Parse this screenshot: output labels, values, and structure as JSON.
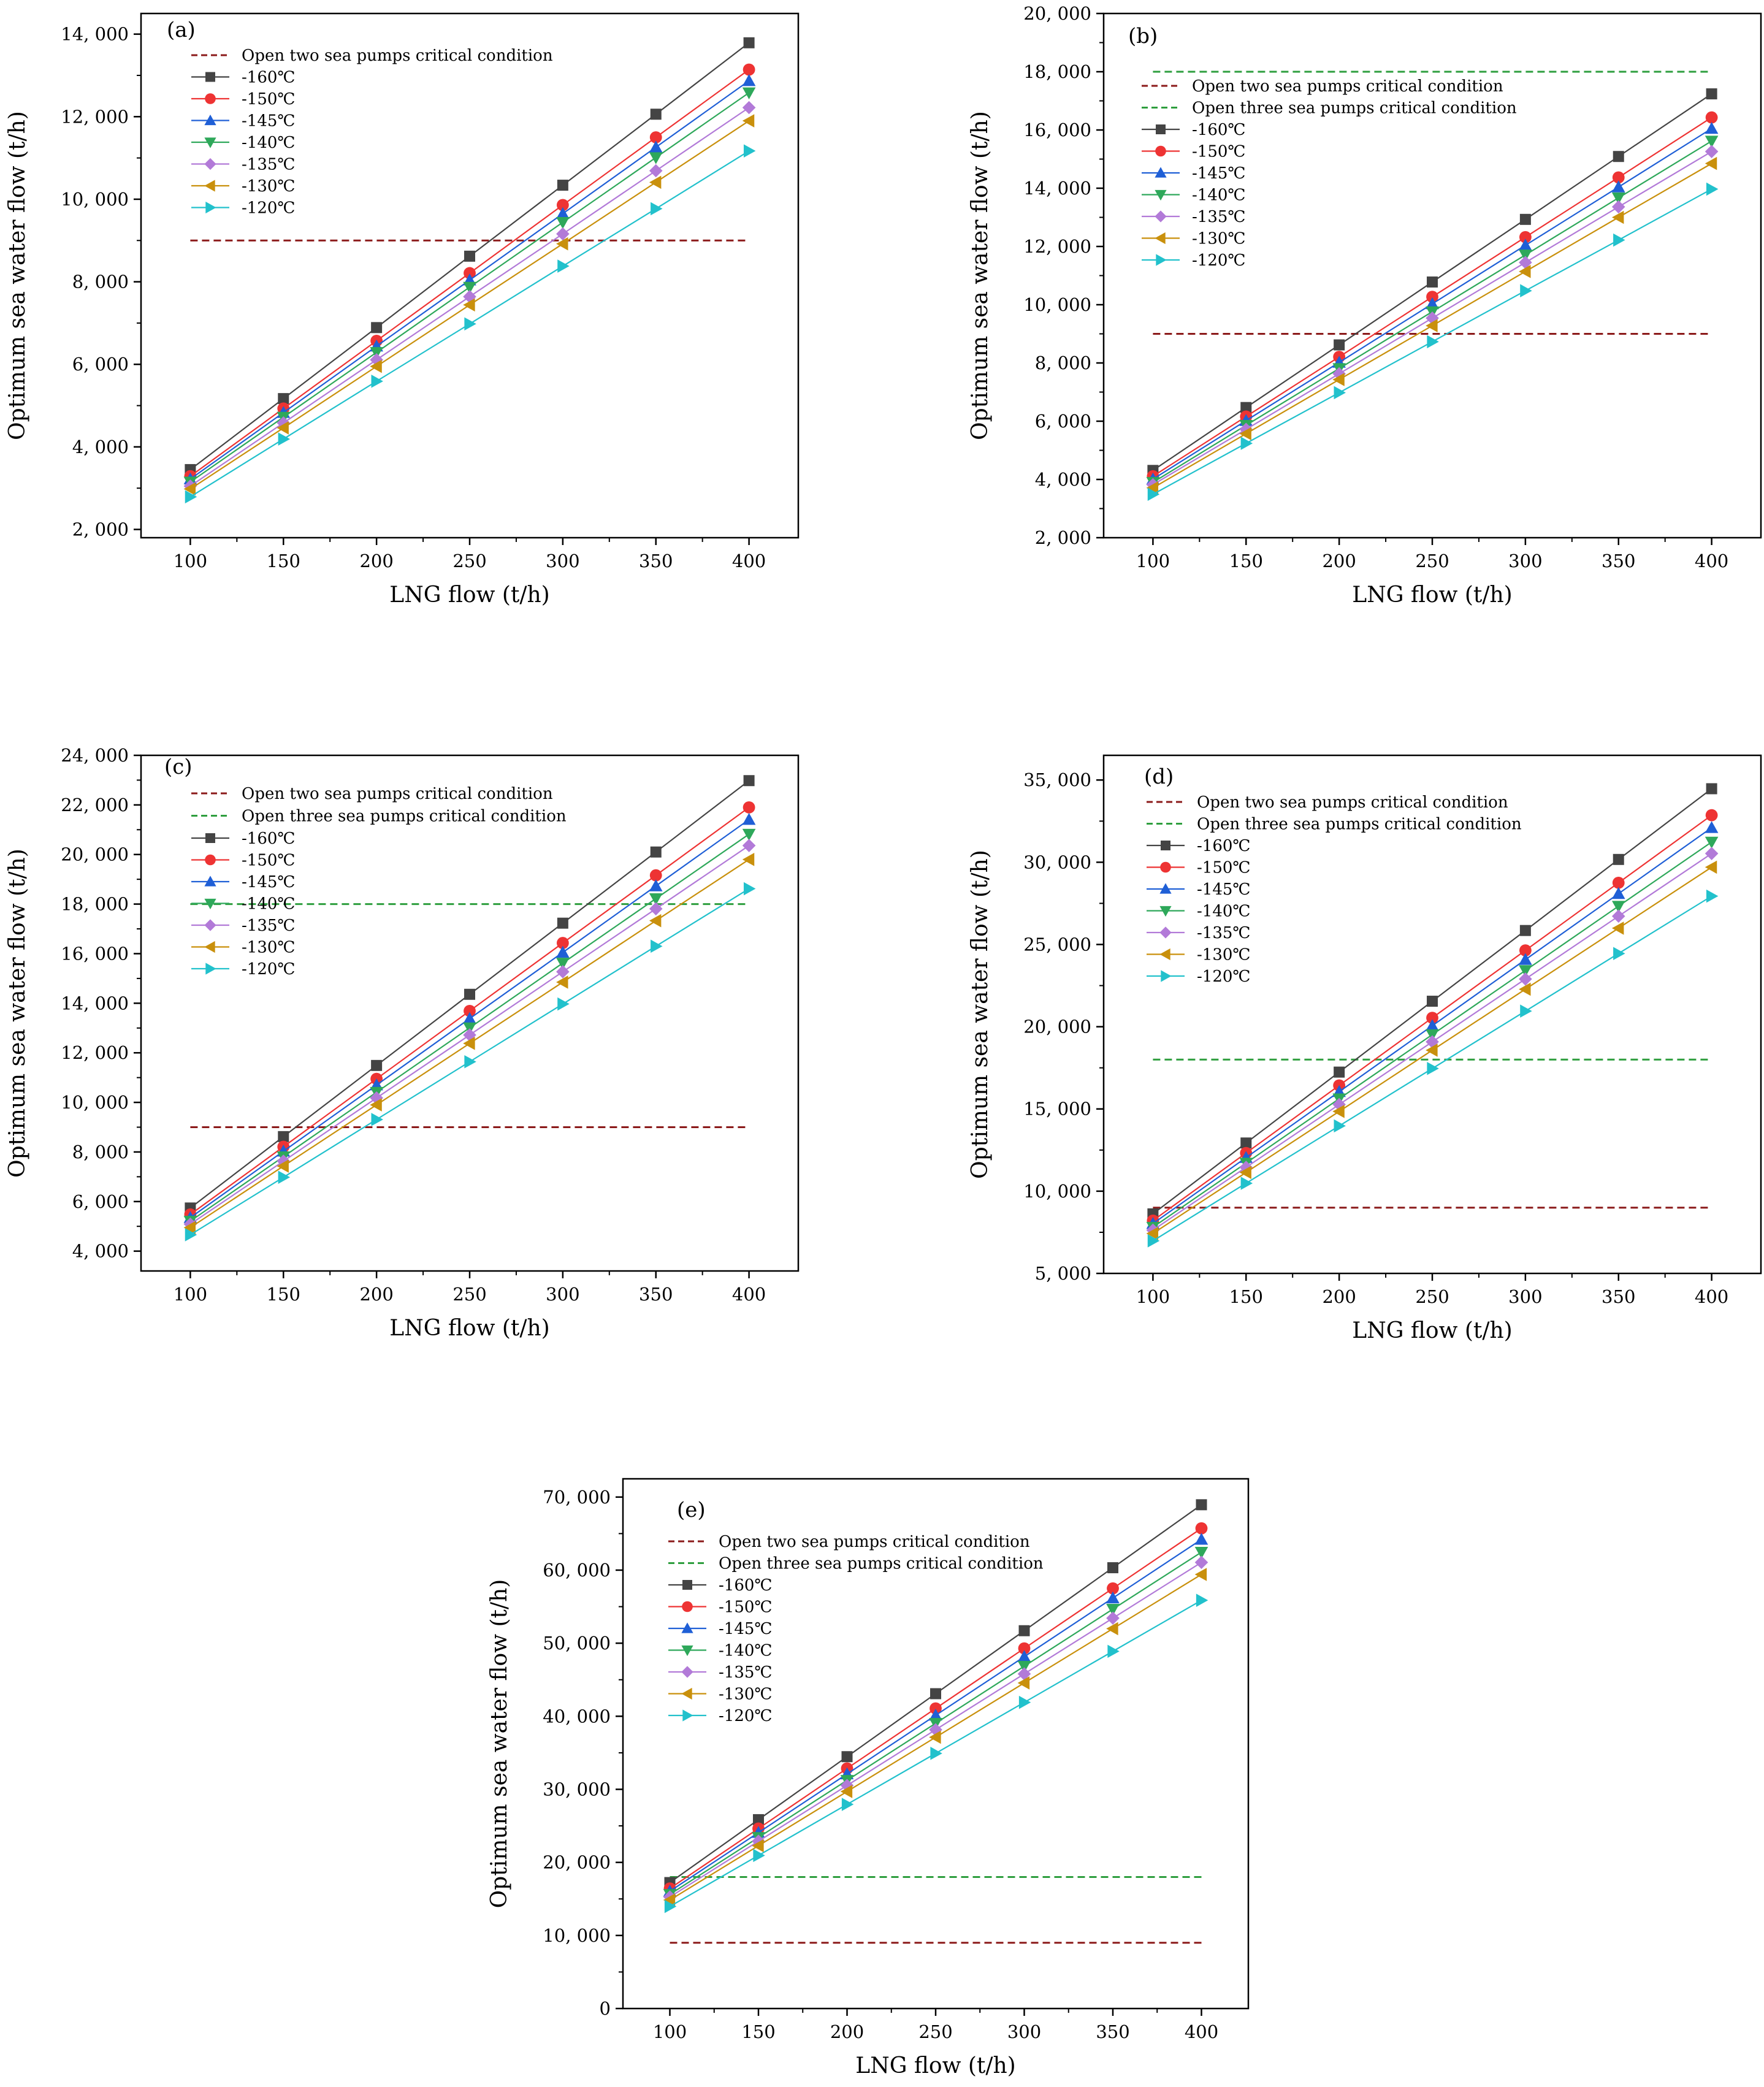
{
  "figure": {
    "x_axis_label": "LNG flow (t/h)",
    "y_axis_label": "Optimum sea water flow (t/h)",
    "series_names": [
      "-160℃",
      "-150℃",
      "-145℃",
      "-140℃",
      "-135℃",
      "-130℃",
      "-120℃"
    ],
    "series_colors": [
      "#444444",
      "#ee3333",
      "#1f5fd6",
      "#2ea85a",
      "#b27ad8",
      "#c9900c",
      "#22c1cc"
    ],
    "series_markers": [
      "square",
      "circle",
      "triangle-up",
      "triangle-down",
      "diamond",
      "triangle-left",
      "triangle-right"
    ],
    "critical_line_names": [
      "Open two sea pumps critical condition",
      "Open three sea pumps critical condition"
    ],
    "critical_line_colors": [
      "#8b1a1a",
      "#2e9e3e"
    ]
  },
  "chart_data": [
    {
      "panel": "(a)",
      "type": "line",
      "x": [
        100,
        150,
        200,
        250,
        300,
        350,
        400
      ],
      "xticks": [
        "100",
        "150",
        "200",
        "250",
        "300",
        "350",
        "400"
      ],
      "yticks": [
        "2, 000",
        "4, 000",
        "6, 000",
        "8, 000",
        "10, 000",
        "12, 000",
        "14, 000"
      ],
      "ytick_values": [
        2000,
        4000,
        6000,
        8000,
        10000,
        12000,
        14000
      ],
      "ylim": [
        1800,
        14500
      ],
      "critical_lines": [
        {
          "name": "Open two sea pumps critical condition",
          "value": 9000
        }
      ],
      "series": [
        {
          "name": "-160℃",
          "values": [
            3450,
            5170,
            6890,
            8620,
            10340,
            12060,
            13790
          ]
        },
        {
          "name": "-150℃",
          "values": [
            3290,
            4930,
            6570,
            8210,
            9860,
            11500,
            13140
          ]
        },
        {
          "name": "-145℃",
          "values": [
            3220,
            4830,
            6440,
            8040,
            9650,
            11260,
            12870
          ]
        },
        {
          "name": "-140℃",
          "values": [
            3150,
            4720,
            6290,
            7870,
            9440,
            11010,
            12580
          ]
        },
        {
          "name": "-135℃",
          "values": [
            3050,
            4580,
            6110,
            7640,
            9160,
            10690,
            12220
          ]
        },
        {
          "name": "-130℃",
          "values": [
            2980,
            4460,
            5950,
            7440,
            8920,
            10410,
            11900
          ]
        },
        {
          "name": "-120℃",
          "values": [
            2790,
            4190,
            5590,
            6980,
            8380,
            9770,
            11170
          ]
        }
      ]
    },
    {
      "panel": "(b)",
      "type": "line",
      "x": [
        100,
        150,
        200,
        250,
        300,
        350,
        400
      ],
      "xticks": [
        "100",
        "150",
        "200",
        "250",
        "300",
        "350",
        "400"
      ],
      "yticks": [
        "2, 000",
        "4, 000",
        "6, 000",
        "8, 000",
        "10, 000",
        "12, 000",
        "14, 000",
        "16, 000",
        "18, 000",
        "20, 000"
      ],
      "ytick_values": [
        2000,
        4000,
        6000,
        8000,
        10000,
        12000,
        14000,
        16000,
        18000,
        20000
      ],
      "ylim": [
        2000,
        20000
      ],
      "critical_lines": [
        {
          "name": "Open two sea pumps critical condition",
          "value": 9000
        },
        {
          "name": "Open three sea pumps critical condition",
          "value": 18000
        }
      ],
      "series": [
        {
          "name": "-160℃",
          "values": [
            4310,
            6470,
            8620,
            10780,
            12930,
            15090,
            17240
          ]
        },
        {
          "name": "-150℃",
          "values": [
            4110,
            6160,
            8210,
            10270,
            12320,
            14370,
            16430
          ]
        },
        {
          "name": "-145℃",
          "values": [
            4010,
            6020,
            8020,
            10030,
            12040,
            14040,
            16050
          ]
        },
        {
          "name": "-140℃",
          "values": [
            3900,
            5860,
            7810,
            9760,
            11710,
            13670,
            15620
          ]
        },
        {
          "name": "-135℃",
          "values": [
            3820,
            5720,
            7630,
            9540,
            11450,
            13360,
            15260
          ]
        },
        {
          "name": "-130℃",
          "values": [
            3710,
            5570,
            7430,
            9280,
            11140,
            13000,
            14850
          ]
        },
        {
          "name": "-120℃",
          "values": [
            3490,
            5240,
            6980,
            8730,
            10480,
            12220,
            13970
          ]
        }
      ]
    },
    {
      "panel": "(c)",
      "type": "line",
      "x": [
        100,
        150,
        200,
        250,
        300,
        350,
        400
      ],
      "xticks": [
        "100",
        "150",
        "200",
        "250",
        "300",
        "350",
        "400"
      ],
      "yticks": [
        "4, 000",
        "6, 000",
        "8, 000",
        "10, 000",
        "12, 000",
        "14, 000",
        "16, 000",
        "18, 000",
        "20, 000",
        "22, 000",
        "24, 000"
      ],
      "ytick_values": [
        4000,
        6000,
        8000,
        10000,
        12000,
        14000,
        16000,
        18000,
        20000,
        22000,
        24000
      ],
      "ylim": [
        3200,
        24000
      ],
      "critical_lines": [
        {
          "name": "Open two sea pumps critical condition",
          "value": 9000
        },
        {
          "name": "Open three sea pumps critical condition",
          "value": 18000
        }
      ],
      "series": [
        {
          "name": "-160℃",
          "values": [
            5740,
            8620,
            11490,
            14360,
            17230,
            20100,
            22980
          ]
        },
        {
          "name": "-150℃",
          "values": [
            5480,
            8210,
            10950,
            13690,
            16430,
            19160,
            21900
          ]
        },
        {
          "name": "-145℃",
          "values": [
            5350,
            8030,
            10700,
            13380,
            16050,
            18730,
            21410
          ]
        },
        {
          "name": "-140℃",
          "values": [
            5210,
            7810,
            10410,
            13010,
            15620,
            18220,
            20820
          ]
        },
        {
          "name": "-135℃",
          "values": [
            5090,
            7630,
            10180,
            12720,
            15270,
            17810,
            20360
          ]
        },
        {
          "name": "-130℃",
          "values": [
            4950,
            7430,
            9900,
            12380,
            14850,
            17330,
            19800
          ]
        },
        {
          "name": "-120℃",
          "values": [
            4660,
            6980,
            9310,
            11640,
            13970,
            16300,
            18620
          ]
        }
      ]
    },
    {
      "panel": "(d)",
      "type": "line",
      "x": [
        100,
        150,
        200,
        250,
        300,
        350,
        400
      ],
      "xticks": [
        "100",
        "150",
        "200",
        "250",
        "300",
        "350",
        "400"
      ],
      "yticks": [
        "5, 000",
        "10, 000",
        "15, 000",
        "20, 000",
        "25, 000",
        "30, 000",
        "35, 000"
      ],
      "ytick_values": [
        5000,
        10000,
        15000,
        20000,
        25000,
        30000,
        35000
      ],
      "ylim": [
        5000,
        36500
      ],
      "critical_lines": [
        {
          "name": "Open two sea pumps critical condition",
          "value": 9000
        },
        {
          "name": "Open three sea pumps critical condition",
          "value": 18000
        }
      ],
      "series": [
        {
          "name": "-160℃",
          "values": [
            8620,
            12930,
            17240,
            21550,
            25850,
            30170,
            34470
          ]
        },
        {
          "name": "-150℃",
          "values": [
            8210,
            12320,
            16430,
            20540,
            24640,
            28750,
            32860
          ]
        },
        {
          "name": "-145℃",
          "values": [
            8030,
            12040,
            16050,
            20060,
            24080,
            28090,
            32100
          ]
        },
        {
          "name": "-140℃",
          "values": [
            7810,
            11710,
            15620,
            19520,
            23420,
            27330,
            31230
          ]
        },
        {
          "name": "-135℃",
          "values": [
            7630,
            11450,
            15270,
            19080,
            22900,
            26720,
            30530
          ]
        },
        {
          "name": "-130℃",
          "values": [
            7430,
            11140,
            14850,
            18570,
            22280,
            25990,
            29700
          ]
        },
        {
          "name": "-120℃",
          "values": [
            6980,
            10480,
            13970,
            17460,
            20950,
            24450,
            27940
          ]
        }
      ]
    },
    {
      "panel": "(e)",
      "type": "line",
      "x": [
        100,
        150,
        200,
        250,
        300,
        350,
        400
      ],
      "xticks": [
        "100",
        "150",
        "200",
        "250",
        "300",
        "350",
        "400"
      ],
      "yticks": [
        "0",
        "10, 000",
        "20, 000",
        "30, 000",
        "40, 000",
        "50, 000",
        "60, 000",
        "70, 000"
      ],
      "ytick_values": [
        0,
        10000,
        20000,
        30000,
        40000,
        50000,
        60000,
        70000
      ],
      "ylim": [
        0,
        72500
      ],
      "critical_lines": [
        {
          "name": "Open two sea pumps critical condition",
          "value": 9000
        },
        {
          "name": "Open three sea pumps critical condition",
          "value": 18000
        }
      ],
      "series": [
        {
          "name": "-160℃",
          "values": [
            17240,
            25850,
            34470,
            43090,
            51710,
            60330,
            68950
          ]
        },
        {
          "name": "-150℃",
          "values": [
            16430,
            24640,
            32860,
            41070,
            49290,
            57500,
            65720
          ]
        },
        {
          "name": "-145℃",
          "values": [
            16050,
            24080,
            32100,
            40130,
            48150,
            56180,
            64200
          ]
        },
        {
          "name": "-140℃",
          "values": [
            15620,
            23420,
            31230,
            39040,
            46850,
            54660,
            62460
          ]
        },
        {
          "name": "-135℃",
          "values": [
            15270,
            22900,
            30530,
            38160,
            45800,
            53430,
            61060
          ]
        },
        {
          "name": "-130℃",
          "values": [
            14850,
            22280,
            29700,
            37130,
            44560,
            51990,
            59410
          ]
        },
        {
          "name": "-120℃",
          "values": [
            13970,
            20950,
            27940,
            34920,
            41900,
            48890,
            55870
          ]
        }
      ]
    }
  ]
}
